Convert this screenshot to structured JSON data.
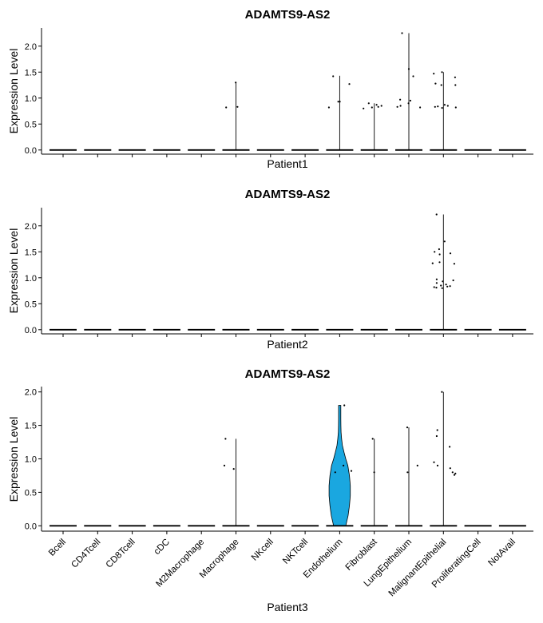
{
  "chart_data": {
    "type": "violin",
    "gene": "ADAMTS9-AS2",
    "categories": [
      "Bcell",
      "CD4Tcell",
      "CD8Tcell",
      "cDC",
      "M2Macrophage",
      "Macrophage",
      "NKcell",
      "NKTcell",
      "Endothelium",
      "Fibroblast",
      "LungEpithelium",
      "MalignantEpithelial",
      "ProliferatingCell",
      "NotAvail"
    ],
    "y_ticks": [
      "0.0",
      "0.5",
      "1.0",
      "1.5",
      "2.0"
    ],
    "ylabel": "Expression Level",
    "fill_color": "#1aa7e0",
    "panels": [
      {
        "title": "ADAMTS9-AS2",
        "xlabel": "Patient1",
        "ylim": [
          -0.08,
          2.35
        ],
        "max_values": [
          0,
          0,
          0,
          0,
          0,
          1.3,
          0,
          0,
          1.43,
          0.9,
          2.25,
          1.5,
          0,
          0
        ],
        "filled_violin": null,
        "points": [
          [
            5,
            1.3
          ],
          [
            5,
            0.83
          ],
          [
            5,
            0.82
          ],
          [
            8,
            1.42
          ],
          [
            8,
            0.93
          ],
          [
            8,
            0.93
          ],
          [
            8,
            0.82
          ],
          [
            8,
            1.27
          ],
          [
            9,
            0.87
          ],
          [
            9,
            0.82
          ],
          [
            9,
            0.9
          ],
          [
            9,
            0.85
          ],
          [
            9,
            0.83
          ],
          [
            9,
            0.8
          ],
          [
            10,
            1.56
          ],
          [
            10,
            2.25
          ],
          [
            10,
            1.42
          ],
          [
            10,
            0.97
          ],
          [
            10,
            0.95
          ],
          [
            10,
            0.9
          ],
          [
            10,
            0.85
          ],
          [
            10,
            0.83
          ],
          [
            10,
            0.82
          ],
          [
            11,
            1.25
          ],
          [
            11,
            1.47
          ],
          [
            11,
            1.5
          ],
          [
            11,
            1.4
          ],
          [
            11,
            1.28
          ],
          [
            11,
            1.25
          ],
          [
            11,
            0.87
          ],
          [
            11,
            0.85
          ],
          [
            11,
            0.84
          ],
          [
            11,
            0.83
          ],
          [
            11,
            0.82
          ],
          [
            11,
            0.81
          ]
        ]
      },
      {
        "title": "ADAMTS9-AS2",
        "xlabel": "Patient2",
        "ylim": [
          -0.08,
          2.35
        ],
        "max_values": [
          0,
          0,
          0,
          0,
          0,
          0,
          0,
          0,
          0,
          0,
          0,
          2.22,
          0,
          0
        ],
        "filled_violin": null,
        "points": [
          [
            11,
            2.22
          ],
          [
            11,
            1.7
          ],
          [
            11,
            1.55
          ],
          [
            11,
            1.5
          ],
          [
            11,
            1.47
          ],
          [
            11,
            1.45
          ],
          [
            11,
            1.3
          ],
          [
            11,
            1.28
          ],
          [
            11,
            1.27
          ],
          [
            11,
            0.97
          ],
          [
            11,
            0.95
          ],
          [
            11,
            0.93
          ],
          [
            11,
            0.9
          ],
          [
            11,
            0.87
          ],
          [
            11,
            0.85
          ],
          [
            11,
            0.84
          ],
          [
            11,
            0.83
          ],
          [
            11,
            0.82
          ],
          [
            11,
            0.81
          ],
          [
            11,
            0.8
          ]
        ]
      },
      {
        "title": "ADAMTS9-AS2",
        "xlabel": "Patient3",
        "ylim": [
          -0.08,
          2.08
        ],
        "max_values": [
          0,
          0,
          0,
          0,
          0,
          1.3,
          0,
          0,
          1.8,
          1.3,
          1.47,
          2.0,
          0,
          0
        ],
        "filled_violin": {
          "category_index": 8,
          "max": 1.8,
          "profile": [
            [
              0,
              0.45
            ],
            [
              0.15,
              0.62
            ],
            [
              0.3,
              0.72
            ],
            [
              0.45,
              0.78
            ],
            [
              0.6,
              0.78
            ],
            [
              0.75,
              0.72
            ],
            [
              0.9,
              0.6
            ],
            [
              1.0,
              0.45
            ],
            [
              1.1,
              0.32
            ],
            [
              1.2,
              0.2
            ],
            [
              1.3,
              0.14
            ],
            [
              1.4,
              0.1
            ],
            [
              1.5,
              0.09
            ],
            [
              1.6,
              0.08
            ],
            [
              1.7,
              0.08
            ],
            [
              1.8,
              0.08
            ]
          ]
        },
        "points": [
          [
            5,
            1.3
          ],
          [
            5,
            0.9
          ],
          [
            5,
            0.85
          ],
          [
            8,
            1.8
          ],
          [
            8,
            0.9
          ],
          [
            8,
            0.82
          ],
          [
            8,
            0.8
          ],
          [
            9,
            1.3
          ],
          [
            9,
            0.8
          ],
          [
            10,
            1.47
          ],
          [
            10,
            0.9
          ],
          [
            10,
            0.8
          ],
          [
            11,
            2.0
          ],
          [
            11,
            1.43
          ],
          [
            11,
            1.34
          ],
          [
            11,
            1.18
          ],
          [
            11,
            0.95
          ],
          [
            11,
            0.9
          ],
          [
            11,
            0.86
          ],
          [
            11,
            0.8
          ],
          [
            11,
            0.78
          ],
          [
            11,
            0.76
          ]
        ]
      }
    ]
  }
}
